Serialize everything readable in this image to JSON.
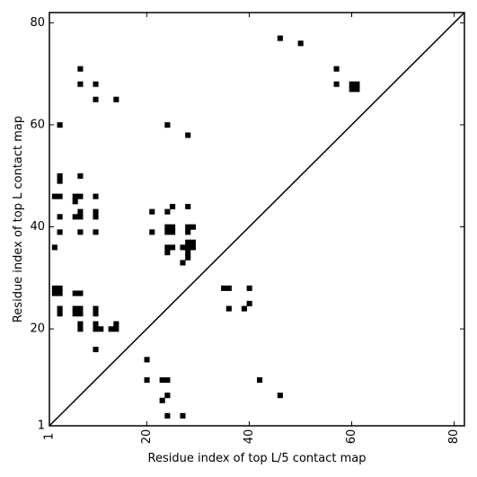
{
  "chart_data": {
    "type": "heatmap",
    "title": "",
    "xlabel": "Residue index of top L/5 contact map",
    "ylabel": "Residue index of top L contact map",
    "xlim": [
      1,
      82
    ],
    "ylim": [
      1,
      82
    ],
    "x_ticks": [
      1,
      20,
      40,
      60,
      80
    ],
    "y_ticks": [
      1,
      20,
      40,
      60,
      80
    ],
    "x_tick_labels": [
      "1",
      "20",
      "40",
      "60",
      "80"
    ],
    "y_tick_labels": [
      "1",
      "20",
      "40",
      "60",
      "80"
    ],
    "x_tick_rotation": -90,
    "diagonal": true,
    "grid": false,
    "mark_color": "#000000",
    "contacts": [
      [
        46,
        77
      ],
      [
        50,
        76
      ],
      [
        57,
        71
      ],
      [
        57,
        68
      ],
      [
        60,
        68
      ],
      [
        61,
        68
      ],
      [
        60,
        67
      ],
      [
        61,
        67
      ],
      [
        7,
        71
      ],
      [
        7,
        68
      ],
      [
        10,
        68
      ],
      [
        10,
        65
      ],
      [
        14,
        65
      ],
      [
        3,
        60
      ],
      [
        24,
        60
      ],
      [
        28,
        58
      ],
      [
        3,
        50
      ],
      [
        3,
        49
      ],
      [
        7,
        50
      ],
      [
        2,
        46
      ],
      [
        3,
        46
      ],
      [
        6,
        46
      ],
      [
        7,
        46
      ],
      [
        10,
        46
      ],
      [
        6,
        45
      ],
      [
        28,
        44
      ],
      [
        25,
        44
      ],
      [
        21,
        43
      ],
      [
        24,
        43
      ],
      [
        7,
        43
      ],
      [
        10,
        43
      ],
      [
        3,
        42
      ],
      [
        6,
        42
      ],
      [
        7,
        42
      ],
      [
        10,
        42
      ],
      [
        24,
        40
      ],
      [
        25,
        40
      ],
      [
        24,
        39
      ],
      [
        25,
        39
      ],
      [
        28,
        40
      ],
      [
        29,
        40
      ],
      [
        28,
        39
      ],
      [
        3,
        39
      ],
      [
        7,
        39
      ],
      [
        10,
        39
      ],
      [
        21,
        39
      ],
      [
        28,
        37
      ],
      [
        29,
        37
      ],
      [
        28,
        36
      ],
      [
        29,
        36
      ],
      [
        27,
        36
      ],
      [
        24,
        36
      ],
      [
        25,
        36
      ],
      [
        24,
        35
      ],
      [
        28,
        35
      ],
      [
        28,
        34
      ],
      [
        27,
        33
      ],
      [
        2,
        36
      ],
      [
        2,
        28
      ],
      [
        3,
        28
      ],
      [
        2,
        27
      ],
      [
        3,
        27
      ],
      [
        6,
        27
      ],
      [
        7,
        27
      ],
      [
        3,
        24
      ],
      [
        3,
        23
      ],
      [
        6,
        24
      ],
      [
        7,
        24
      ],
      [
        6,
        23
      ],
      [
        7,
        23
      ],
      [
        10,
        24
      ],
      [
        10,
        23
      ],
      [
        7,
        21
      ],
      [
        7,
        20
      ],
      [
        10,
        21
      ],
      [
        10,
        20
      ],
      [
        11,
        20
      ],
      [
        13,
        20
      ],
      [
        14,
        20
      ],
      [
        14,
        21
      ],
      [
        10,
        16
      ],
      [
        35,
        28
      ],
      [
        36,
        28
      ],
      [
        40,
        28
      ],
      [
        36,
        24
      ],
      [
        39,
        24
      ],
      [
        40,
        25
      ],
      [
        20,
        14
      ],
      [
        20,
        10
      ],
      [
        23,
        10
      ],
      [
        24,
        10
      ],
      [
        23,
        6
      ],
      [
        24,
        7
      ],
      [
        24,
        3
      ],
      [
        27,
        3
      ],
      [
        42,
        10
      ],
      [
        46,
        7
      ]
    ]
  }
}
